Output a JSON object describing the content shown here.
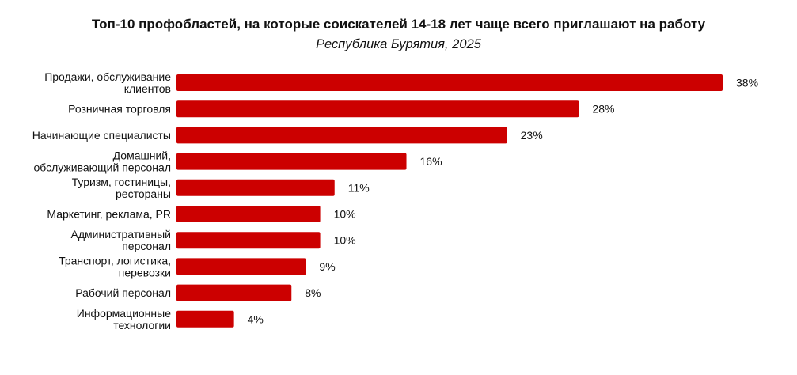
{
  "chart_data": {
    "type": "bar",
    "orientation": "horizontal",
    "title": "Топ-10 профобластей, на которые соискателей 14-18 лет чаще всего приглашают на работу",
    "subtitle": "Республика Бурятия, 2025",
    "xlabel": "",
    "ylabel": "",
    "xlim": [
      0,
      38
    ],
    "grid": false,
    "legend": "none",
    "bar_color": "#cc0000",
    "value_suffix": "%",
    "categories": [
      [
        "Продажи, обслуживание",
        "клиентов"
      ],
      [
        "Розничная торговля"
      ],
      [
        "Начинающие специалисты"
      ],
      [
        "Домашний,",
        "обслуживающий персонал"
      ],
      [
        "Туризм, гостиницы,",
        "рестораны"
      ],
      [
        "Маркетинг, реклама, PR"
      ],
      [
        "Административный",
        "персонал"
      ],
      [
        "Транспорт, логистика,",
        "перевозки"
      ],
      [
        "Рабочий персонал"
      ],
      [
        "Информационные",
        "технологии"
      ]
    ],
    "values": [
      38,
      28,
      23,
      16,
      11,
      10,
      10,
      9,
      8,
      4
    ],
    "value_labels": [
      "38%",
      "28%",
      "23%",
      "16%",
      "11%",
      "10%",
      "10%",
      "9%",
      "8%",
      "4%"
    ]
  }
}
